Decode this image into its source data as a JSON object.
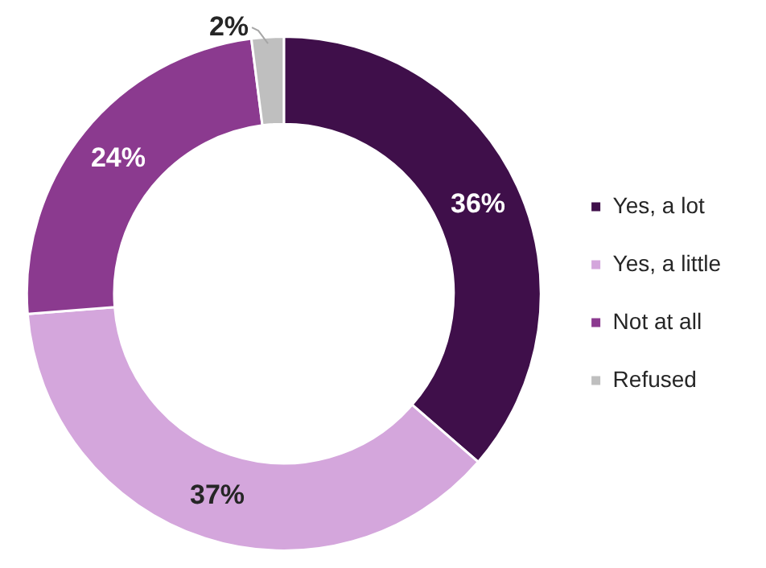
{
  "chart_data": {
    "type": "donut",
    "categories": [
      "Yes, a lot",
      "Yes, a little",
      "Not at all",
      "Refused"
    ],
    "values": [
      36,
      37,
      24,
      2
    ],
    "colors": [
      "#3f0f4a",
      "#d4a6dc",
      "#8b3a8f",
      "#bfbfbf"
    ],
    "value_labels": [
      "36%",
      "37%",
      "24%",
      "2%"
    ],
    "legend": "right"
  }
}
